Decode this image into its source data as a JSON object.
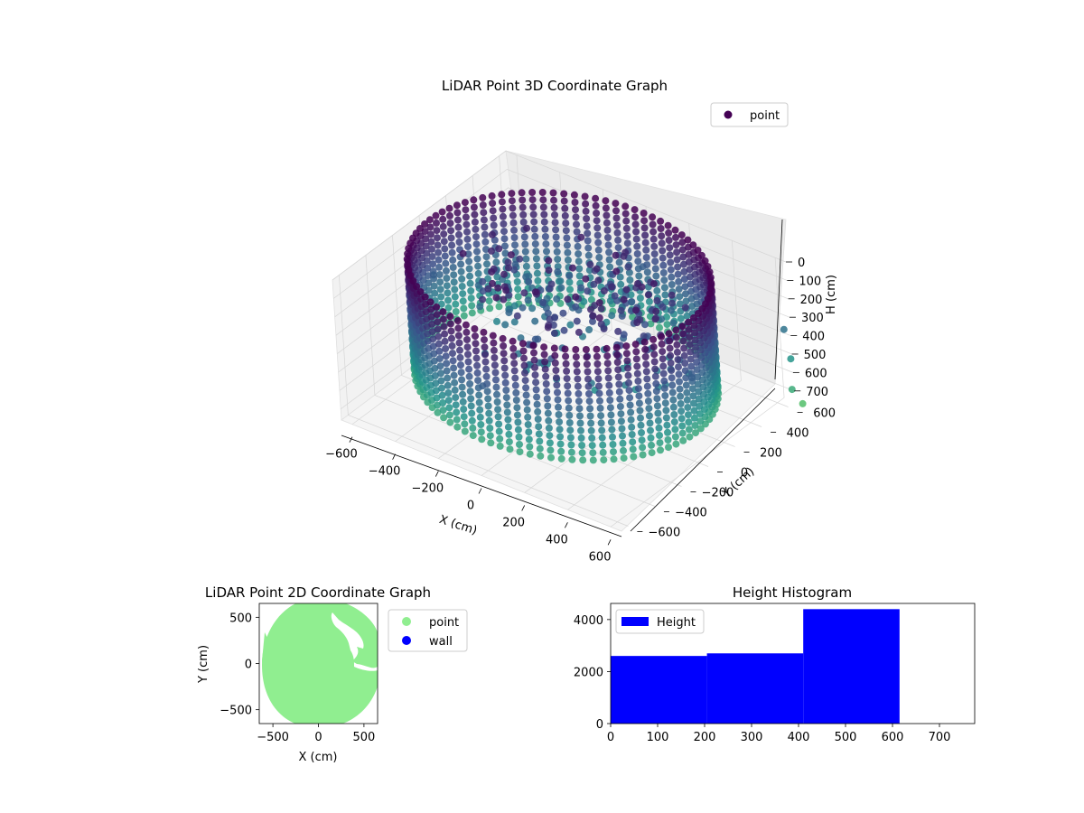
{
  "chart_data": [
    {
      "id": "scatter3d",
      "type": "scatter",
      "title": "LiDAR Point 3D Coordinate Graph",
      "xlabel": "X (cm)",
      "ylabel": "Y (cm)",
      "zlabel": "H (cm)",
      "x_ticks": [
        -600,
        -400,
        -200,
        0,
        200,
        400,
        600
      ],
      "y_ticks": [
        -600,
        -400,
        -200,
        0,
        200,
        400,
        600
      ],
      "z_ticks": [
        0,
        100,
        200,
        300,
        400,
        500,
        600,
        700
      ],
      "xlim": [
        -650,
        650
      ],
      "ylim": [
        -650,
        650
      ],
      "zlim": [
        0,
        760
      ],
      "z_inverted": true,
      "grid": true,
      "legend": {
        "position": "top-right",
        "entries": [
          {
            "label": "point",
            "color": "#440154"
          }
        ]
      },
      "series": [
        {
          "name": "point",
          "shape": "cylindrical wall of points, radius ~600 cm, height 0-620 cm, with interior debris points",
          "colormap": [
            "#440154",
            "#3b528b",
            "#21918c",
            "#5ec962"
          ],
          "points": [
            [
              600,
              0,
              300
            ],
            [
              0,
              600,
              300
            ],
            [
              -600,
              0,
              300
            ],
            [
              0,
              -600,
              300
            ],
            [
              100,
              250,
              250
            ],
            [
              -50,
              300,
              150
            ],
            [
              200,
              -100,
              500
            ],
            [
              -200,
              200,
              350
            ],
            [
              620,
              650,
              380
            ],
            [
              650,
              640,
              520
            ],
            [
              700,
              560,
              620
            ],
            [
              720,
              600,
              710
            ]
          ]
        }
      ]
    },
    {
      "id": "scatter2d",
      "type": "scatter",
      "title": "LiDAR Point 2D Coordinate Graph",
      "xlabel": "X (cm)",
      "ylabel": "Y (cm)",
      "x_ticks": [
        -500,
        0,
        500
      ],
      "y_ticks": [
        500,
        0,
        -500
      ],
      "xlim": [
        -650,
        650
      ],
      "ylim": [
        -650,
        650
      ],
      "legend": {
        "position": "outside-right",
        "entries": [
          {
            "label": "point",
            "color": "#90ee90"
          },
          {
            "label": "wall",
            "color": "#0000ff"
          }
        ]
      },
      "series": [
        {
          "name": "point",
          "color": "#90ee90",
          "shape": "filled disk radius ~620 cm with notches at upper right"
        },
        {
          "name": "wall",
          "color": "#0000ff",
          "points": []
        }
      ]
    },
    {
      "id": "histogram",
      "type": "bar",
      "title": "Height Histogram",
      "x_ticks": [
        0,
        100,
        200,
        300,
        400,
        500,
        600,
        700
      ],
      "y_ticks": [
        0,
        2000,
        4000
      ],
      "xlim": [
        0,
        775
      ],
      "ylim": [
        0,
        4620
      ],
      "legend": {
        "position": "top-left",
        "entries": [
          {
            "label": "Height",
            "color": "#0000ff"
          }
        ]
      },
      "bins": [
        {
          "from": 0,
          "to": 205,
          "value": 2600
        },
        {
          "from": 205,
          "to": 410,
          "value": 2700
        },
        {
          "from": 410,
          "to": 615,
          "value": 4400
        }
      ],
      "bar_color": "#0000ff"
    }
  ]
}
